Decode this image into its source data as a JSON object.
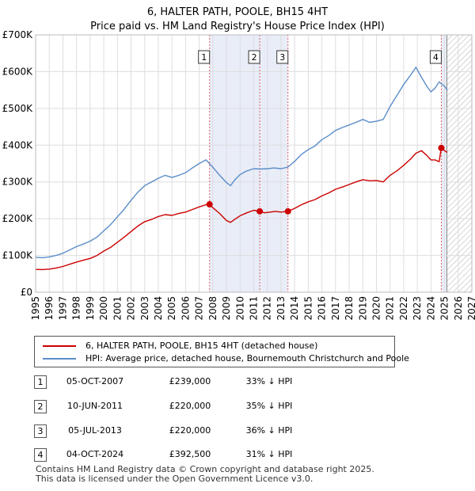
{
  "title": "6, HALTER PATH, POOLE, BH15 4HT",
  "subtitle": "Price paid vs. HM Land Registry's House Price Index (HPI)",
  "chart_data": {
    "type": "line",
    "title": "6, HALTER PATH, POOLE, BH15 4HT",
    "subtitle": "Price paid vs. HM Land Registry's House Price Index (HPI)",
    "xlabel": "",
    "ylabel": "",
    "xlim": [
      1995,
      2027
    ],
    "ylim": [
      0,
      700000
    ],
    "grid": true,
    "y_ticks": [
      0,
      100000,
      200000,
      300000,
      400000,
      500000,
      600000,
      700000
    ],
    "y_tick_labels": [
      "£0",
      "£100K",
      "£200K",
      "£300K",
      "£400K",
      "£500K",
      "£600K",
      "£700K"
    ],
    "x_ticks": [
      1995,
      1996,
      1997,
      1998,
      1999,
      2000,
      2001,
      2002,
      2003,
      2004,
      2005,
      2006,
      2007,
      2008,
      2009,
      2010,
      2011,
      2012,
      2013,
      2014,
      2015,
      2016,
      2017,
      2018,
      2019,
      2020,
      2021,
      2022,
      2023,
      2024,
      2025,
      2026,
      2027
    ],
    "x_tick_labels": [
      "1995",
      "1996",
      "1997",
      "1998",
      "1999",
      "2000",
      "2001",
      "2002",
      "2003",
      "2004",
      "2005",
      "2006",
      "2007",
      "2008",
      "2009",
      "2010",
      "2011",
      "2012",
      "2013",
      "2014",
      "2015",
      "2016",
      "2017",
      "2018",
      "2019",
      "2020",
      "2021",
      "2022",
      "2023",
      "2024",
      "2025",
      "2026",
      "2027"
    ],
    "shaded_periods": [
      [
        2007.76,
        2013.51
      ],
      [
        2024.76,
        2025.17
      ]
    ],
    "hatched_after": 2025.17,
    "series": [
      {
        "name": "6, HALTER PATH, POOLE, BH15 4HT (detached house)",
        "color": "#cc0000",
        "x": [
          1995.0,
          1995.5,
          1996.0,
          1996.5,
          1997.0,
          1997.5,
          1998.0,
          1998.5,
          1999.0,
          1999.5,
          2000.0,
          2000.5,
          2001.0,
          2001.5,
          2002.0,
          2002.5,
          2003.0,
          2003.5,
          2004.0,
          2004.5,
          2005.0,
          2005.5,
          2006.0,
          2006.5,
          2007.0,
          2007.5,
          2007.76,
          2008.0,
          2008.5,
          2009.0,
          2009.3,
          2009.6,
          2010.0,
          2010.5,
          2011.0,
          2011.44,
          2011.8,
          2012.2,
          2012.6,
          2013.0,
          2013.51,
          2014.0,
          2014.5,
          2015.0,
          2015.5,
          2016.0,
          2016.5,
          2017.0,
          2017.5,
          2018.0,
          2018.5,
          2019.0,
          2019.5,
          2020.0,
          2020.5,
          2021.0,
          2021.5,
          2022.0,
          2022.5,
          2022.9,
          2023.3,
          2023.7,
          2024.0,
          2024.3,
          2024.6,
          2024.76,
          2025.0,
          2025.2
        ],
        "y": [
          62000,
          61500,
          63000,
          66000,
          70000,
          76000,
          82000,
          87000,
          92000,
          100000,
          112000,
          122000,
          136000,
          150000,
          165000,
          180000,
          192000,
          198000,
          206000,
          211000,
          209000,
          214000,
          218000,
          225000,
          232000,
          238000,
          239000,
          230000,
          214000,
          195000,
          190000,
          198000,
          208000,
          216000,
          223000,
          220000,
          216000,
          218000,
          220000,
          218000,
          220000,
          228000,
          238000,
          246000,
          252000,
          262000,
          270000,
          280000,
          286000,
          293000,
          300000,
          306000,
          303000,
          304000,
          300000,
          318000,
          330000,
          345000,
          362000,
          378000,
          385000,
          372000,
          360000,
          360000,
          355000,
          392500,
          385000,
          380000
        ]
      },
      {
        "name": "HPI: Average price, detached house, Bournemouth Christchurch and Poole",
        "color": "#5b8dc9",
        "x": [
          1995.0,
          1995.5,
          1996.0,
          1996.5,
          1997.0,
          1997.5,
          1998.0,
          1998.5,
          1999.0,
          1999.5,
          2000.0,
          2000.5,
          2001.0,
          2001.5,
          2002.0,
          2002.5,
          2003.0,
          2003.5,
          2004.0,
          2004.5,
          2005.0,
          2005.5,
          2006.0,
          2006.5,
          2007.0,
          2007.5,
          2008.0,
          2008.5,
          2009.0,
          2009.3,
          2009.6,
          2010.0,
          2010.5,
          2011.0,
          2011.5,
          2012.0,
          2012.5,
          2013.0,
          2013.5,
          2014.0,
          2014.5,
          2015.0,
          2015.5,
          2016.0,
          2016.5,
          2017.0,
          2017.5,
          2018.0,
          2018.5,
          2019.0,
          2019.5,
          2020.0,
          2020.5,
          2021.0,
          2021.5,
          2022.0,
          2022.5,
          2022.9,
          2023.3,
          2023.7,
          2024.0,
          2024.3,
          2024.6,
          2025.0,
          2025.2
        ],
        "y": [
          95000,
          94000,
          96000,
          100000,
          106000,
          115000,
          124000,
          131000,
          139000,
          150000,
          167000,
          184000,
          205000,
          226000,
          250000,
          272000,
          290000,
          300000,
          310000,
          318000,
          312000,
          318000,
          325000,
          338000,
          350000,
          360000,
          340000,
          318000,
          298000,
          290000,
          305000,
          320000,
          330000,
          336000,
          335000,
          336000,
          338000,
          336000,
          340000,
          356000,
          375000,
          388000,
          398000,
          415000,
          426000,
          440000,
          448000,
          455000,
          462000,
          470000,
          462000,
          465000,
          470000,
          505000,
          535000,
          565000,
          590000,
          612000,
          585000,
          560000,
          545000,
          555000,
          572000,
          560000,
          550000
        ]
      }
    ],
    "sales": [
      {
        "label": "1",
        "x": 2007.76,
        "y": 239000
      },
      {
        "label": "2",
        "x": 2011.44,
        "y": 220000
      },
      {
        "label": "3",
        "x": 2013.51,
        "y": 220000
      },
      {
        "label": "4",
        "x": 2024.76,
        "y": 392500
      }
    ]
  },
  "legend": {
    "property_label": "6, HALTER PATH, POOLE, BH15 4HT (detached house)",
    "hpi_label": "HPI: Average price, detached house, Bournemouth Christchurch and Poole"
  },
  "transactions": [
    {
      "num": "1",
      "date": "05-OCT-2007",
      "price": "£239,000",
      "hpi": "33% ↓ HPI"
    },
    {
      "num": "2",
      "date": "10-JUN-2011",
      "price": "£220,000",
      "hpi": "35% ↓ HPI"
    },
    {
      "num": "3",
      "date": "05-JUL-2013",
      "price": "£220,000",
      "hpi": "36% ↓ HPI"
    },
    {
      "num": "4",
      "date": "04-OCT-2024",
      "price": "£392,500",
      "hpi": "31% ↓ HPI"
    }
  ],
  "footer": {
    "line1": "Contains HM Land Registry data © Crown copyright and database right 2025.",
    "line2": "This data is licensed under the Open Government Licence v3.0."
  }
}
